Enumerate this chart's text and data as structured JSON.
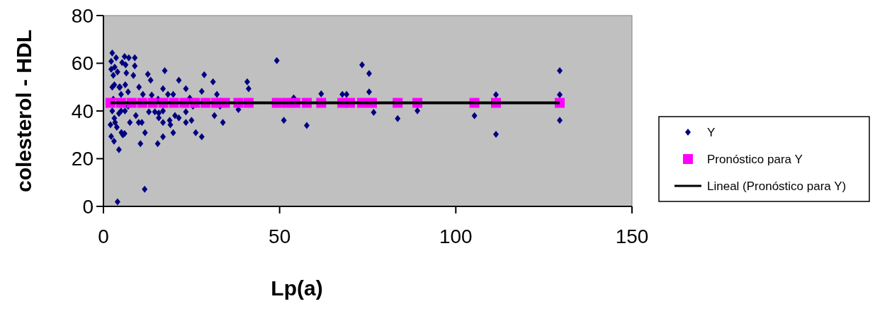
{
  "chart_data": {
    "type": "scatter",
    "xlabel": "Lp(a)",
    "ylabel": "colesterol - HDL",
    "xlim": [
      0,
      150
    ],
    "ylim": [
      0,
      80
    ],
    "xticks": [
      0,
      50,
      100,
      150
    ],
    "yticks": [
      0,
      20,
      40,
      60,
      80
    ],
    "grid": false,
    "legend": "right",
    "series": [
      {
        "name": "Y",
        "color": "#000080",
        "marker": "diamond",
        "x": [
          2.5,
          3.6,
          2.2,
          6.0,
          7.2,
          8.9,
          5.3,
          6.3,
          8.9,
          3.2,
          4.0,
          12.6,
          17.4,
          28.6,
          6.5,
          8.5,
          13.4,
          21.4,
          31.1,
          10.1,
          16.9,
          23.4,
          27.9,
          4.7,
          6.2,
          7.0,
          11.2,
          13.7,
          15.5,
          18.3,
          19.8,
          32.2,
          24.5,
          12.9,
          14.6,
          15.7,
          16.9,
          9.2,
          20.3,
          23.4,
          25.4,
          33.1,
          15.7,
          18.8,
          21.4,
          23.4,
          25.0,
          31.5,
          33.9,
          7.5,
          10.0,
          10.9,
          16.9,
          19.0,
          11.8,
          16.9,
          19.8,
          26.2,
          27.9,
          10.5,
          15.4,
          4.4,
          11.7,
          4.0,
          2.2,
          3.0,
          2.0,
          3.3,
          3.8,
          5.1,
          5.5,
          6.0,
          4.4,
          5.0,
          6.1,
          3.1,
          2.8,
          2.5,
          2.8,
          2.2,
          3.1,
          4.5,
          5.0,
          7.0,
          2.5,
          49.2,
          40.8,
          41.2,
          38.3,
          51.2,
          54.0,
          57.7,
          61.8,
          67.8,
          69.0,
          73.4,
          75.4,
          75.4,
          76.7,
          83.5,
          89.1,
          105.3,
          111.4,
          111.4,
          129.5,
          129.5,
          129.5
        ],
        "values": [
          64.3,
          62.3,
          60.8,
          62.8,
          62.3,
          62.3,
          60.3,
          59.3,
          58.9,
          58.4,
          56.4,
          55.4,
          56.9,
          55.2,
          55.9,
          54.9,
          52.9,
          52.9,
          52.2,
          50.0,
          49.3,
          49.3,
          48.2,
          50.0,
          51.0,
          48.0,
          47.0,
          46.7,
          45.0,
          47.0,
          47.0,
          47.0,
          45.4,
          39.6,
          39.6,
          39.1,
          40.0,
          38.1,
          38.1,
          39.6,
          42.0,
          42.0,
          37.1,
          36.1,
          37.1,
          35.2,
          36.1,
          38.1,
          35.2,
          35.2,
          35.2,
          35.2,
          35.2,
          34.2,
          30.9,
          29.2,
          30.9,
          30.9,
          29.2,
          26.3,
          26.3,
          23.8,
          7.2,
          1.9,
          29.3,
          27.3,
          34.2,
          35.2,
          33.2,
          31.0,
          30.0,
          30.5,
          39.0,
          40.0,
          40.0,
          37.0,
          45.0,
          50.0,
          55.0,
          57.5,
          51.0,
          50.0,
          47.0,
          42.0,
          40.0,
          61.1,
          52.2,
          49.3,
          40.6,
          36.1,
          45.5,
          33.9,
          47.2,
          47.0,
          47.0,
          59.3,
          55.7,
          48.0,
          39.4,
          36.8,
          40.1,
          38.0,
          46.8,
          30.2,
          56.9,
          46.8,
          36.1
        ]
      },
      {
        "name": "Pronóstico para Y",
        "color": "#ff00ff",
        "marker": "square",
        "x": [
          2.0,
          5.0,
          8.0,
          11.0,
          14.0,
          17.0,
          20.0,
          23.0,
          26.0,
          29.0,
          32.0,
          34.5,
          38.3,
          41.2,
          49.2,
          52.0,
          54.5,
          57.7,
          61.8,
          67.8,
          70.0,
          73.4,
          76.2,
          83.5,
          89.1,
          105.3,
          111.4,
          129.5
        ],
        "values": [
          43.4,
          43.4,
          43.4,
          43.4,
          43.4,
          43.4,
          43.4,
          43.4,
          43.4,
          43.4,
          43.4,
          43.4,
          43.4,
          43.4,
          43.4,
          43.4,
          43.4,
          43.4,
          43.4,
          43.4,
          43.4,
          43.4,
          43.4,
          43.4,
          43.4,
          43.4,
          43.4,
          43.4
        ]
      },
      {
        "name": "Lineal (Pronóstico para Y)",
        "color": "#000000",
        "type": "line",
        "marker": "none",
        "line_style": "solid",
        "x": [
          2.0,
          129.5
        ],
        "values": [
          43.4,
          43.4
        ]
      }
    ]
  }
}
